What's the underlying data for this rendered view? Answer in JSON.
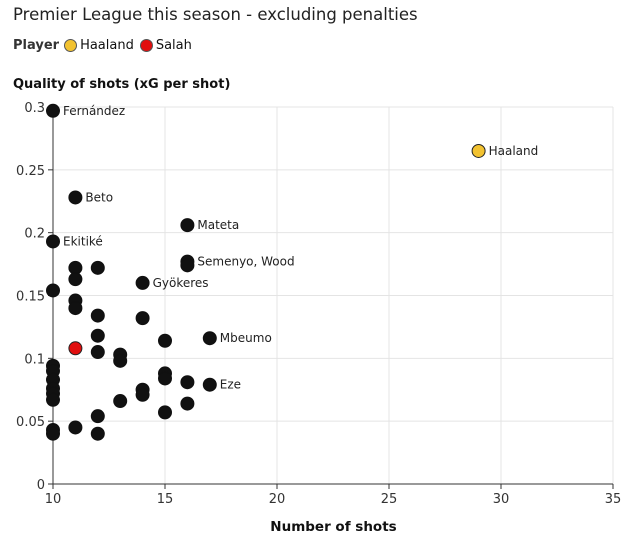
{
  "chart_data": {
    "type": "scatter",
    "title": "Premier League this season - excluding penalties",
    "legend_title": "Player",
    "legend": [
      {
        "name": "Haaland",
        "color": "#f2c230"
      },
      {
        "name": "Salah",
        "color": "#e10f0f"
      }
    ],
    "ylabel": "Quality of shots (xG per shot)",
    "xlabel": "Number of shots",
    "xlim": [
      10,
      35
    ],
    "ylim": [
      0,
      0.3
    ],
    "xticks": [
      10,
      15,
      20,
      25,
      30,
      35
    ],
    "yticks": [
      0,
      0.05,
      0.1,
      0.15,
      0.2,
      0.25,
      0.3
    ],
    "ytick_labels": [
      "0",
      "0.05",
      "0.1",
      "0.15",
      "0.2",
      "0.25",
      "0.3"
    ],
    "grid": true,
    "default_color": "#111111",
    "points": [
      {
        "x": 10,
        "y": 0.297,
        "label": "Fernández"
      },
      {
        "x": 29,
        "y": 0.265,
        "label": "Haaland",
        "highlight": "Haaland"
      },
      {
        "x": 11,
        "y": 0.228,
        "label": "Beto"
      },
      {
        "x": 16,
        "y": 0.206,
        "label": "Mateta"
      },
      {
        "x": 10,
        "y": 0.193,
        "label": "Ekitiké"
      },
      {
        "x": 16,
        "y": 0.177,
        "label": "Semenyo, Wood"
      },
      {
        "x": 16,
        "y": 0.174
      },
      {
        "x": 11,
        "y": 0.172
      },
      {
        "x": 12,
        "y": 0.172
      },
      {
        "x": 11,
        "y": 0.163
      },
      {
        "x": 14,
        "y": 0.16,
        "label": "Gyökeres"
      },
      {
        "x": 10,
        "y": 0.154
      },
      {
        "x": 11,
        "y": 0.146
      },
      {
        "x": 11,
        "y": 0.14
      },
      {
        "x": 12,
        "y": 0.134
      },
      {
        "x": 14,
        "y": 0.132
      },
      {
        "x": 12,
        "y": 0.118
      },
      {
        "x": 17,
        "y": 0.116,
        "label": "Mbeumo"
      },
      {
        "x": 15,
        "y": 0.114
      },
      {
        "x": 11,
        "y": 0.108,
        "highlight": "Salah"
      },
      {
        "x": 12,
        "y": 0.105
      },
      {
        "x": 13,
        "y": 0.103
      },
      {
        "x": 13,
        "y": 0.098
      },
      {
        "x": 10,
        "y": 0.094
      },
      {
        "x": 10,
        "y": 0.09
      },
      {
        "x": 15,
        "y": 0.088
      },
      {
        "x": 15,
        "y": 0.084
      },
      {
        "x": 10,
        "y": 0.083
      },
      {
        "x": 16,
        "y": 0.081
      },
      {
        "x": 17,
        "y": 0.079,
        "label": "Eze"
      },
      {
        "x": 10,
        "y": 0.076
      },
      {
        "x": 14,
        "y": 0.075
      },
      {
        "x": 10,
        "y": 0.072
      },
      {
        "x": 14,
        "y": 0.071
      },
      {
        "x": 10,
        "y": 0.067
      },
      {
        "x": 13,
        "y": 0.066
      },
      {
        "x": 16,
        "y": 0.064
      },
      {
        "x": 15,
        "y": 0.057
      },
      {
        "x": 12,
        "y": 0.054
      },
      {
        "x": 11,
        "y": 0.045
      },
      {
        "x": 10,
        "y": 0.043
      },
      {
        "x": 10,
        "y": 0.04
      },
      {
        "x": 12,
        "y": 0.04
      }
    ]
  }
}
